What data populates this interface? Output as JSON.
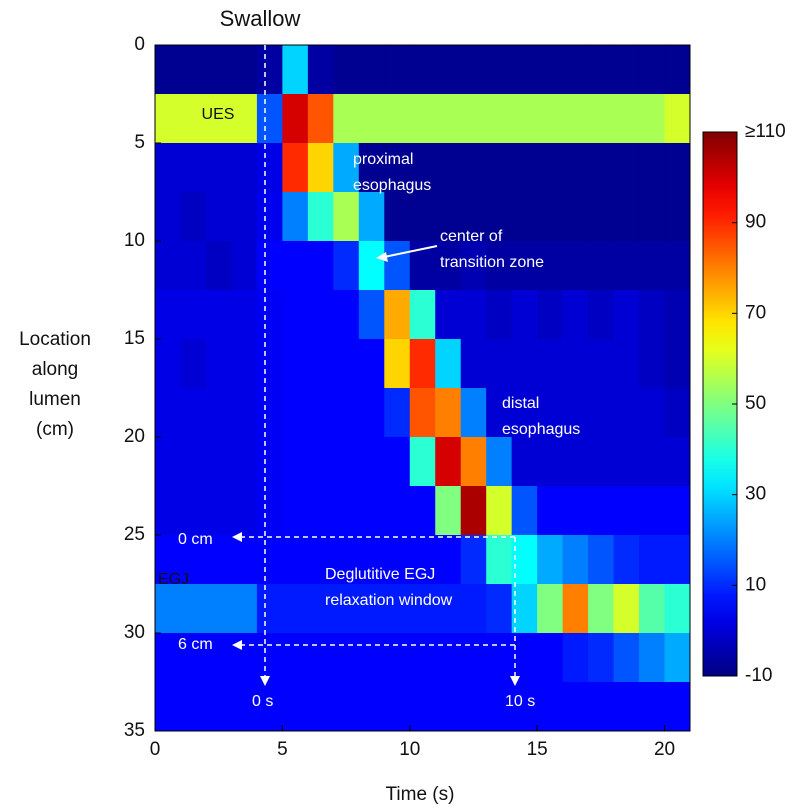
{
  "chart_data": {
    "type": "heatmap",
    "title": "Swallow",
    "xlabel": "Time (s)",
    "ylabel": [
      "Location",
      "along",
      "lumen",
      "(cm)"
    ],
    "xlim": [
      0,
      21
    ],
    "ylim": [
      0,
      35
    ],
    "xticks": [
      0,
      5,
      10,
      15,
      20
    ],
    "yticks": [
      0,
      5,
      10,
      15,
      20,
      25,
      30,
      35
    ],
    "y_inverted": true,
    "colormap": "jet",
    "clim": [
      -10,
      110
    ],
    "cticks": [
      -10,
      10,
      30,
      50,
      70,
      90,
      {
        "value": 110,
        "label": "≥110"
      }
    ],
    "x": [
      0.5,
      1.5,
      2.5,
      3.5,
      4.5,
      5.5,
      6.5,
      7.5,
      8.5,
      9.5,
      10.5,
      11.5,
      12.5,
      13.5,
      14.5,
      15.5,
      16.5,
      17.5,
      18.5,
      19.5,
      20.5
    ],
    "y": [
      1.25,
      3.75,
      6.25,
      8.75,
      11.25,
      13.75,
      16.25,
      18.75,
      21.25,
      23.75,
      26.25,
      28.75,
      31.25,
      33.75
    ],
    "z": [
      [
        -8,
        -8,
        -8,
        -8,
        -6,
        30,
        -6,
        -8,
        -8,
        -8,
        -8,
        -8,
        -8,
        -8,
        -8,
        -8,
        -8,
        -8,
        -8,
        -8,
        -8
      ],
      [
        60,
        60,
        60,
        60,
        15,
        100,
        85,
        55,
        55,
        55,
        55,
        55,
        55,
        55,
        55,
        55,
        55,
        55,
        55,
        55,
        60
      ],
      [
        0,
        0,
        0,
        0,
        2,
        90,
        70,
        25,
        -8,
        -8,
        -8,
        -8,
        -8,
        -8,
        -8,
        -8,
        -8,
        -8,
        -8,
        -8,
        -8
      ],
      [
        0,
        -2,
        0,
        0,
        3,
        20,
        40,
        55,
        25,
        -8,
        -8,
        -8,
        -8,
        -8,
        -8,
        -8,
        -8,
        -8,
        -8,
        -8,
        -8
      ],
      [
        0,
        0,
        -2,
        0,
        5,
        5,
        5,
        10,
        35,
        15,
        -6,
        -6,
        -4,
        -6,
        -6,
        -6,
        -6,
        -6,
        -6,
        -6,
        -6
      ],
      [
        2,
        2,
        2,
        2,
        4,
        5,
        5,
        5,
        15,
        75,
        40,
        0,
        0,
        -2,
        0,
        -2,
        0,
        -2,
        0,
        -2,
        -4
      ],
      [
        2,
        0,
        2,
        2,
        4,
        5,
        5,
        5,
        5,
        70,
        90,
        30,
        0,
        0,
        0,
        0,
        0,
        0,
        0,
        -2,
        -4
      ],
      [
        2,
        2,
        2,
        2,
        4,
        5,
        5,
        5,
        5,
        10,
        85,
        80,
        20,
        0,
        0,
        0,
        0,
        0,
        0,
        0,
        -2
      ],
      [
        2,
        2,
        2,
        2,
        4,
        5,
        5,
        5,
        5,
        5,
        40,
        100,
        80,
        20,
        0,
        0,
        0,
        0,
        0,
        0,
        0
      ],
      [
        2,
        2,
        2,
        2,
        4,
        5,
        5,
        5,
        5,
        5,
        5,
        50,
        105,
        60,
        15,
        5,
        5,
        5,
        5,
        5,
        5
      ],
      [
        5,
        5,
        5,
        5,
        5,
        5,
        5,
        5,
        5,
        5,
        5,
        5,
        10,
        40,
        35,
        25,
        20,
        15,
        10,
        8,
        8
      ],
      [
        20,
        20,
        20,
        20,
        8,
        8,
        8,
        8,
        8,
        8,
        8,
        8,
        8,
        10,
        30,
        50,
        80,
        50,
        60,
        45,
        40
      ],
      [
        5,
        5,
        5,
        5,
        5,
        5,
        5,
        5,
        5,
        5,
        5,
        5,
        5,
        5,
        5,
        5,
        8,
        10,
        15,
        20,
        25
      ],
      [
        5,
        5,
        5,
        5,
        5,
        5,
        5,
        5,
        5,
        5,
        5,
        5,
        5,
        5,
        5,
        5,
        5,
        5,
        5,
        5,
        5
      ]
    ],
    "annotations": [
      {
        "text": [
          "UES"
        ]
      },
      {
        "text": [
          "proximal",
          "esophagus"
        ]
      },
      {
        "text": [
          "center of",
          "transition zone"
        ]
      },
      {
        "text": [
          "distal",
          "esophagus"
        ]
      },
      {
        "text": [
          "Deglutitive EGJ",
          "relaxation window"
        ]
      },
      {
        "text": [
          "EGJ"
        ]
      },
      {
        "text": [
          "0 cm"
        ]
      },
      {
        "text": [
          "6 cm"
        ]
      },
      {
        "text": [
          "0 s"
        ]
      },
      {
        "text": [
          "10 s"
        ]
      }
    ]
  }
}
